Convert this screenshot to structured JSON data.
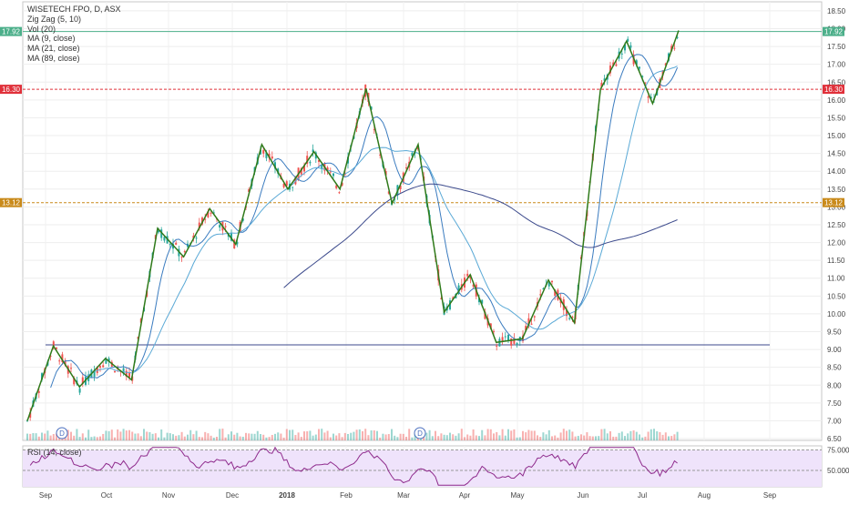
{
  "legend": {
    "symbol": "WISETECH FPO, D, ASX",
    "indicators": [
      "Zig Zag (5, 10)",
      "Vol (20)",
      "MA (9, close)",
      "MA (21, close)",
      "MA (89, close)"
    ],
    "rsi": "RSI (14, close)"
  },
  "price_scale": {
    "ticks": [
      "18.50",
      "18.00",
      "17.50",
      "17.00",
      "16.50",
      "16.00",
      "15.50",
      "15.00",
      "14.50",
      "14.00",
      "13.50",
      "13.00",
      "12.50",
      "12.00",
      "11.50",
      "11.00",
      "10.50",
      "10.00",
      "9.50",
      "9.00",
      "8.50",
      "8.00",
      "7.50",
      "7.00",
      "6.50"
    ]
  },
  "rsi_scale": {
    "ticks": [
      "75.0000",
      "50.0000"
    ]
  },
  "time_axis": {
    "labels": [
      "Sep",
      "Oct",
      "Nov",
      "Dec",
      "2018",
      "Feb",
      "Mar",
      "Apr",
      "May",
      "Jun",
      "Jul",
      "Aug",
      "Sep"
    ]
  },
  "badges": [
    {
      "label": "17.92",
      "color": "#4caf8a"
    },
    {
      "label": "16.30",
      "color": "#e0303a"
    },
    {
      "label": "13.12",
      "color": "#c98a1a"
    }
  ],
  "event_markers": [
    {
      "label": "D",
      "month": "Sep"
    },
    {
      "label": "D",
      "month": "Mar"
    }
  ],
  "colors": {
    "up": "#26a69a",
    "down": "#ef5350",
    "zigzag": "#2f7a1a",
    "ma9": "#3a7bbf",
    "ma21": "#5aa9d6",
    "ma89": "#3c4a8c",
    "rsi": "#8e2a8c",
    "rsi_band": "#efe3fb"
  },
  "chart_data": {
    "type": "candlestick",
    "title": "WISETECH FPO, D, ASX",
    "price_range": [
      6.45,
      18.6
    ],
    "horizontal_levels": [
      {
        "value": 17.92,
        "style": "solid",
        "color": "#4caf8a"
      },
      {
        "value": 16.3,
        "style": "dashed",
        "color": "#e0303a"
      },
      {
        "value": 13.12,
        "style": "dashed",
        "color": "#c98a1a"
      },
      {
        "value": 9.13,
        "style": "solid",
        "color": "#3c4a8c",
        "from_month": "Sep",
        "to_month": "Aug"
      }
    ],
    "zigzag_pivots": [
      7.0,
      9.1,
      7.95,
      8.75,
      8.15,
      12.4,
      11.6,
      12.95,
      11.95,
      14.75,
      13.5,
      14.55,
      13.5,
      16.32,
      13.1,
      14.75,
      10.05,
      11.1,
      9.2,
      9.3,
      10.95,
      9.75,
      16.3,
      17.65,
      15.9,
      17.95
    ],
    "rsi_range": [
      30,
      80
    ],
    "rsi_levels": [
      75,
      50
    ]
  }
}
